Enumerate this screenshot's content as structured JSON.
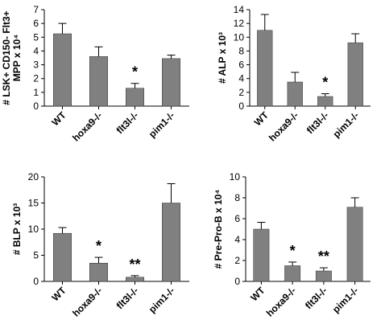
{
  "chart_data": [
    {
      "type": "bar",
      "panel": "A",
      "categories": [
        "WT",
        "hoxa9-/-",
        "flt3l-/-",
        "pim1-/-"
      ],
      "values": [
        5.25,
        3.6,
        1.3,
        3.45
      ],
      "errors": [
        0.75,
        0.7,
        0.35,
        0.25
      ],
      "significance": [
        "",
        "",
        "*",
        ""
      ],
      "ylabel_lines": [
        "# LSK+ CD150- Flt3+",
        "MPP x 10⁴"
      ],
      "ylim": [
        0,
        7
      ],
      "yticks": [
        0,
        1,
        2,
        3,
        4,
        5,
        6,
        7
      ],
      "bar_color": "#808080"
    },
    {
      "type": "bar",
      "panel": "B",
      "categories": [
        "WT",
        "hoxa9-/-",
        "flt3l-/-",
        "pim1-/-"
      ],
      "values": [
        11,
        3.5,
        1.4,
        9.2
      ],
      "errors": [
        2.3,
        1.4,
        0.4,
        1.3
      ],
      "significance": [
        "",
        "",
        "*",
        ""
      ],
      "ylabel_lines": [
        "# ALP x 10³"
      ],
      "ylim": [
        0,
        14
      ],
      "yticks": [
        0,
        2,
        4,
        6,
        8,
        10,
        12,
        14
      ],
      "bar_color": "#808080"
    },
    {
      "type": "bar",
      "panel": "C",
      "categories": [
        "WT",
        "hoxa9-/-",
        "flt3l-/-",
        "pim1-/-"
      ],
      "values": [
        9.2,
        3.5,
        0.8,
        15
      ],
      "errors": [
        1.1,
        1.1,
        0.3,
        3.7
      ],
      "significance": [
        "",
        "*",
        "**",
        ""
      ],
      "ylabel_lines": [
        "# BLP x 10³"
      ],
      "ylim": [
        0,
        20
      ],
      "yticks": [
        0,
        5,
        10,
        15,
        20
      ],
      "bar_color": "#808080"
    },
    {
      "type": "bar",
      "panel": "D",
      "categories": [
        "WT",
        "hoxa9-/-",
        "flt3l-/-",
        "pim1-/-"
      ],
      "values": [
        5,
        1.5,
        1,
        7.1
      ],
      "errors": [
        0.65,
        0.35,
        0.3,
        0.9
      ],
      "significance": [
        "",
        "*",
        "**",
        ""
      ],
      "ylabel_lines": [
        "# Pre-Pro-B x 10⁴"
      ],
      "ylim": [
        0,
        10
      ],
      "yticks": [
        0,
        2,
        4,
        6,
        8,
        10
      ],
      "bar_color": "#808080"
    }
  ]
}
